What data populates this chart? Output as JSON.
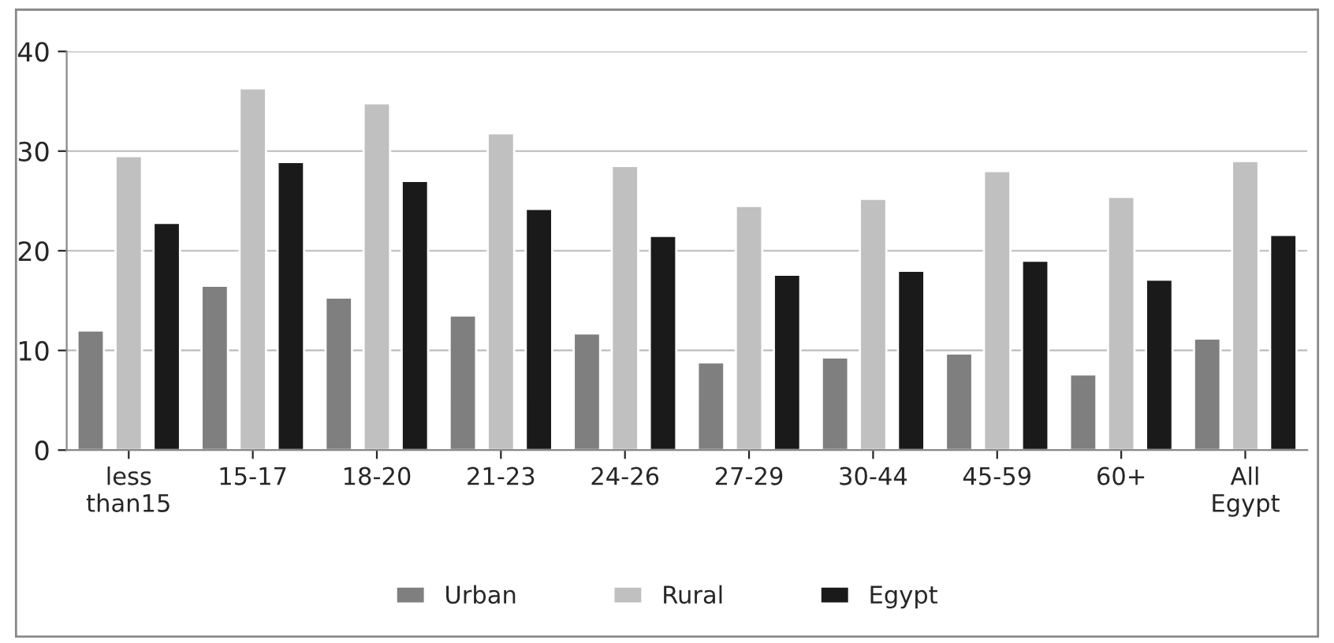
{
  "chart_data": {
    "type": "bar",
    "categories": [
      "less\nthan15",
      "15-17",
      "18-20",
      "21-23",
      "24-26",
      "27-29",
      "30-44",
      "45-59",
      "60+",
      "All\nEgypt"
    ],
    "series": [
      {
        "name": "Urban",
        "color": "#7f7f7f",
        "values": [
          12,
          16.5,
          15.3,
          13.5,
          11.7,
          8.8,
          9.3,
          9.7,
          7.6,
          11.2
        ]
      },
      {
        "name": "Rural",
        "color": "#c0c0c0",
        "values": [
          29.5,
          36.3,
          34.8,
          31.8,
          28.5,
          24.5,
          25.2,
          28,
          25.4,
          29
        ]
      },
      {
        "name": "Egypt",
        "color": "#1a1a1a",
        "values": [
          22.8,
          28.9,
          27,
          24.2,
          21.5,
          17.6,
          18,
          19,
          17.1,
          21.6
        ]
      }
    ],
    "ylim": [
      0,
      40
    ],
    "yticks": [
      0,
      10,
      20,
      30,
      40
    ],
    "grid": "y",
    "legend": "bottom"
  }
}
